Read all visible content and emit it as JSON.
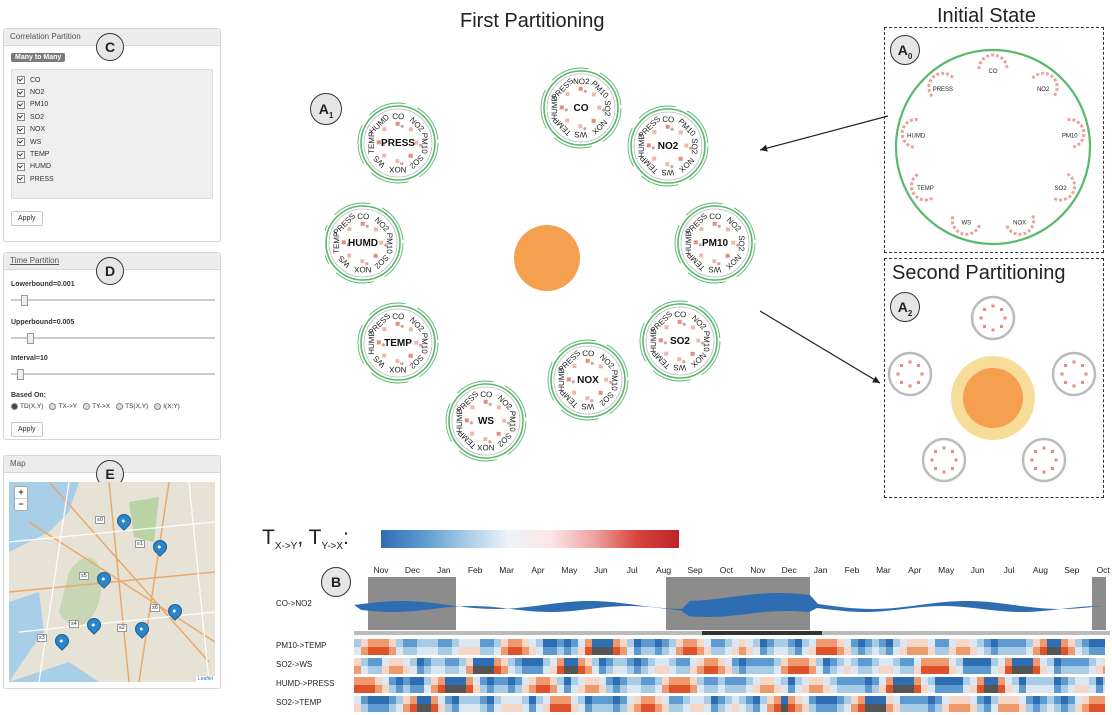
{
  "correlation_panel": {
    "title": "Correlation Partition",
    "badge": "C",
    "mode_button": "Many to Many",
    "items": [
      "CO",
      "NO2",
      "PM10",
      "SO2",
      "NOX",
      "WS",
      "TEMP",
      "HUMD",
      "PRESS"
    ],
    "apply": "Apply"
  },
  "time_panel": {
    "title": "Time Partition",
    "badge": "D",
    "lower": "Lowerbound=0.001",
    "lower_level": 0.05,
    "upper": "Upperbound=0.005",
    "upper_level": 0.08,
    "interval": "Interval=10",
    "interval_level": 0.03,
    "based_on": "Based On:",
    "options": [
      "TD(X,Y)",
      "TX->Y",
      "TY->X",
      "TS(X,Y)",
      "I(X;Y)"
    ],
    "selected_index": 0,
    "apply": "Apply"
  },
  "map_panel": {
    "title": "Map",
    "badge": "E",
    "zoom_in": "+",
    "zoom_out": "−",
    "attribution": "Leaflet",
    "markers": [
      "s0",
      "s1",
      "s5",
      "s6",
      "s4",
      "s2",
      "s3"
    ]
  },
  "titles": {
    "first": "First Partitioning",
    "initial": "Initial State",
    "second": "Second Partitioning"
  },
  "badges": {
    "a1": "A1",
    "a0": "A0",
    "a2": "A2",
    "b": "B"
  },
  "variables": [
    "CO",
    "NO2",
    "PM10",
    "SO2",
    "NOX",
    "WS",
    "TEMP",
    "HUMD",
    "PRESS"
  ],
  "colors": {
    "green": "#59b86c",
    "orange": "#f4a04f",
    "blue": "#2f6db3",
    "red": "#c1222a",
    "gray": "#8c8c8c"
  },
  "legend": {
    "label": "T",
    "sub1": "X->Y",
    "sep": ", ",
    "sub2": "Y->X",
    "colon": ":"
  },
  "timeline": {
    "months": [
      "Nov",
      "Dec",
      "Jan",
      "Feb",
      "Mar",
      "Apr",
      "May",
      "Jun",
      "Jul",
      "Aug",
      "Sep",
      "Oct",
      "Nov",
      "Dec",
      "Jan",
      "Feb",
      "Mar",
      "Apr",
      "May",
      "Jun",
      "Jul",
      "Aug",
      "Sep",
      "Oct"
    ],
    "main_row": "CO->NO2",
    "rows": [
      "PM10->TEMP",
      "SO2->WS",
      "HUMD->PRESS",
      "SO2->TEMP"
    ]
  }
}
